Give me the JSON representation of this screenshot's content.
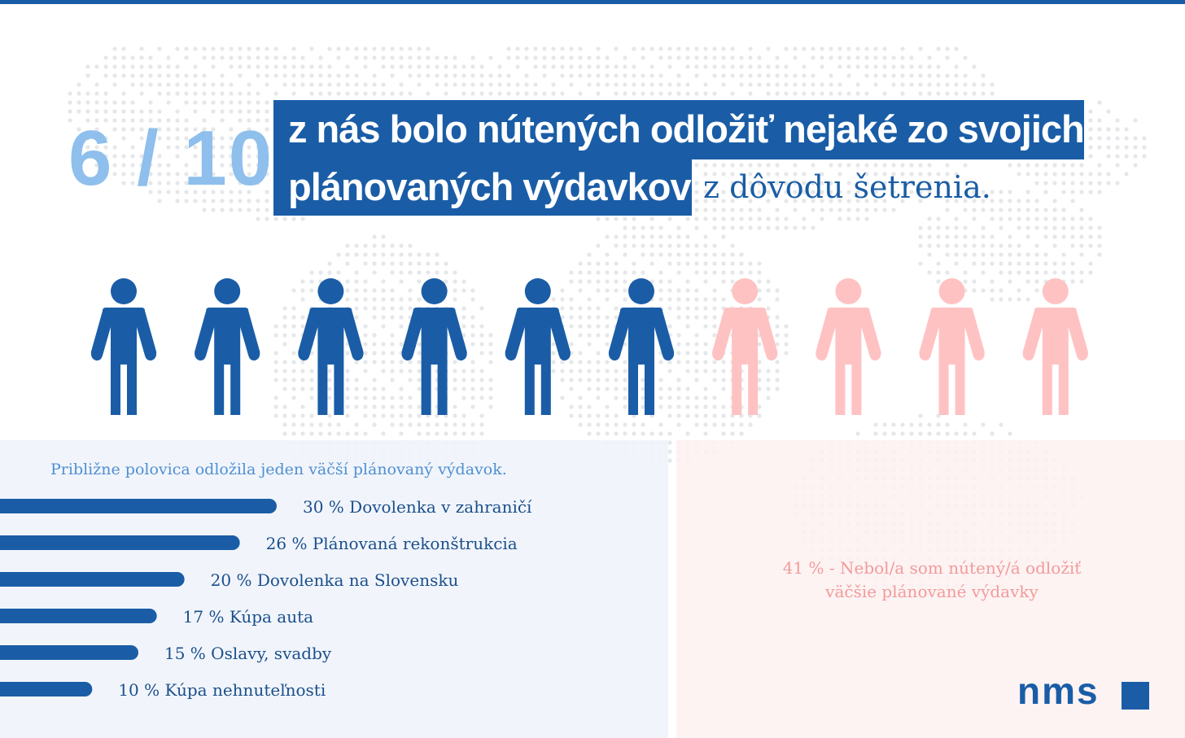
{
  "header": {
    "ratio": "6 / 10",
    "line1": "z nás bolo nútených odložiť nejaké zo svojich",
    "line2": "plánovaných výdavkov",
    "line2_tail": "z dôvodu šetrenia."
  },
  "colors": {
    "brand": "#1a5da6",
    "ratio": "#8fbfec",
    "pink": "#ffc2c2",
    "note": "#f39a9a",
    "bar_title": "#4f8fd3"
  },
  "icons": [
    "person-icon"
  ],
  "chart_data": [
    {
      "type": "pictogram",
      "total": 10,
      "highlighted": 6,
      "colors": [
        "#1a5da6",
        "#ffc2c2"
      ]
    },
    {
      "type": "bar",
      "orientation": "horizontal",
      "title": "Približne polovica odložila jeden väčší plánovaný výdavok.",
      "categories": [
        "Dovolenka v zahraničí",
        "Plánovaná rekonštrukcia",
        "Dovolenka na Slovensku",
        "Kúpa auta",
        "Oslavy, svadby",
        "Kúpa nehnuteľnosti"
      ],
      "values": [
        30,
        26,
        20,
        17,
        15,
        10
      ],
      "labels": [
        "30 % Dovolenka v zahraničí",
        "26 % Plánovaná rekonštrukcia",
        "20 % Dovolenka na Slovensku",
        "17 % Kúpa auta",
        "15 % Oslavy, svadby",
        "10 % Kúpa nehnuteľnosti"
      ],
      "unit": "%",
      "grid": false
    }
  ],
  "note": {
    "line1": "41 % - Nebol/a som nútený/á odložiť",
    "line2": "väčšie plánované výdavky"
  },
  "logo": {
    "text": "nms"
  }
}
